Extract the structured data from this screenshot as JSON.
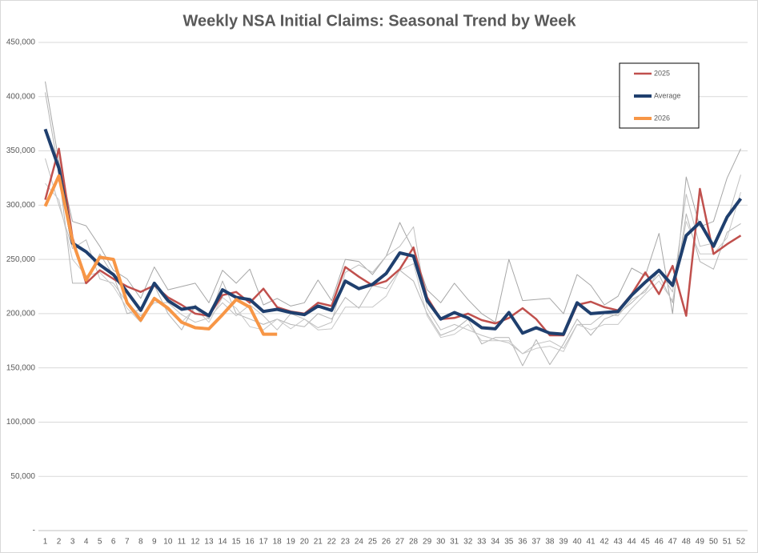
{
  "chart_data": {
    "type": "line",
    "title": "Weekly NSA Initial Claims: Seasonal Trend by Week",
    "categories": [
      1,
      2,
      3,
      4,
      5,
      6,
      7,
      8,
      9,
      10,
      11,
      12,
      13,
      14,
      15,
      16,
      17,
      18,
      19,
      20,
      21,
      22,
      23,
      24,
      25,
      26,
      27,
      28,
      29,
      30,
      31,
      32,
      33,
      34,
      35,
      36,
      37,
      38,
      39,
      40,
      41,
      42,
      43,
      44,
      45,
      46,
      47,
      48,
      49,
      50,
      51,
      52
    ],
    "ylim": [
      0,
      450000
    ],
    "yticks": [
      {
        "value": 0,
        "label": "-"
      },
      {
        "value": 50000,
        "label": "50,000"
      },
      {
        "value": 100000,
        "label": "100,000"
      },
      {
        "value": 150000,
        "label": "150,000"
      },
      {
        "value": 200000,
        "label": "200,000"
      },
      {
        "value": 250000,
        "label": "250,000"
      },
      {
        "value": 300000,
        "label": "300,000"
      },
      {
        "value": 350000,
        "label": "350,000"
      },
      {
        "value": 400000,
        "label": "400,000"
      },
      {
        "value": 450000,
        "label": "450,000"
      }
    ],
    "grid": true,
    "legend": "top-right",
    "series": [
      {
        "color": "#a6a6a6",
        "width": 1,
        "values": [
          414000,
          340000,
          285000,
          281000,
          262000,
          240000,
          232000,
          214000,
          243000,
          222000,
          225000,
          228000,
          210000,
          240000,
          228000,
          241000,
          208000,
          214000,
          207000,
          210000,
          231000,
          212000,
          250000,
          248000,
          236000,
          253000,
          284000,
          258000,
          222000,
          210000,
          228000,
          213000,
          200000,
          192000,
          250000,
          212000,
          213000,
          214000,
          200000,
          236000,
          226000,
          208000,
          216000,
          242000,
          235000,
          274000,
          200000,
          326000,
          280000,
          285000,
          325000,
          352000
        ]
      },
      {
        "color": "#b4b4b4",
        "width": 1,
        "values": [
          404000,
          330000,
          228000,
          228000,
          255000,
          235000,
          200000,
          204000,
          226000,
          200000,
          185000,
          208000,
          195000,
          230000,
          200000,
          195000,
          190000,
          195000,
          190000,
          188000,
          200000,
          195000,
          215000,
          205000,
          226000,
          223000,
          240000,
          230000,
          200000,
          180000,
          185000,
          195000,
          172000,
          178000,
          178000,
          152000,
          176000,
          153000,
          172000,
          195000,
          180000,
          195000,
          200000,
          210000,
          222000,
          236000,
          210000,
          292000,
          248000,
          241000,
          275000,
          283000
        ]
      },
      {
        "color": "#bfbfbf",
        "width": 1,
        "values": [
          343000,
          300000,
          260000,
          268000,
          232000,
          228000,
          210000,
          198000,
          210000,
          210000,
          199000,
          192000,
          196000,
          210000,
          198000,
          208000,
          198000,
          185000,
          200000,
          195000,
          187000,
          192000,
          238000,
          245000,
          238000,
          253000,
          262000,
          280000,
          205000,
          185000,
          190000,
          185000,
          180000,
          176000,
          173000,
          163000,
          172000,
          175000,
          168000,
          190000,
          190000,
          200000,
          198000,
          213000,
          220000,
          240000,
          220000,
          310000,
          262000,
          265000,
          286000,
          328000
        ]
      },
      {
        "color": "#c8c8c8",
        "width": 1,
        "values": [
          320000,
          305000,
          250000,
          235000,
          238000,
          225000,
          205000,
          192000,
          215000,
          203000,
          192000,
          205000,
          192000,
          215000,
          205000,
          188000,
          185000,
          195000,
          186000,
          195000,
          185000,
          186000,
          206000,
          206000,
          206000,
          216000,
          240000,
          246000,
          198000,
          178000,
          181000,
          190000,
          175000,
          175000,
          175000,
          163000,
          168000,
          170000,
          165000,
          190000,
          185000,
          190000,
          190000,
          205000,
          218000,
          230000,
          212000,
          285000,
          255000,
          255000,
          270000,
          312000
        ]
      },
      {
        "name": "2025",
        "color": "#c0504d",
        "width": 2.5,
        "values": [
          305000,
          352000,
          270000,
          228000,
          240000,
          232000,
          225000,
          220000,
          226000,
          215000,
          208000,
          200000,
          198000,
          217000,
          220000,
          210000,
          223000,
          206000,
          202000,
          200000,
          210000,
          207000,
          243000,
          234000,
          226000,
          230000,
          241000,
          261000,
          215000,
          195000,
          196000,
          200000,
          194000,
          191000,
          196000,
          205000,
          195000,
          180000,
          180000,
          208000,
          211000,
          206000,
          203000,
          218000,
          238000,
          218000,
          244000,
          198000,
          315000,
          255000,
          264000,
          272000
        ]
      },
      {
        "name": "Average",
        "color": "#1f3f6e",
        "width": 4,
        "values": [
          370000,
          334000,
          265000,
          257000,
          245000,
          236000,
          220000,
          203000,
          228000,
          212000,
          204000,
          206000,
          198000,
          222000,
          215000,
          213000,
          202000,
          204000,
          201000,
          199000,
          207000,
          203000,
          230000,
          223000,
          227000,
          237000,
          256000,
          253000,
          212000,
          195000,
          201000,
          196000,
          187000,
          186000,
          201000,
          182000,
          187000,
          182000,
          181000,
          210000,
          200000,
          201000,
          202000,
          217000,
          229000,
          240000,
          226000,
          272000,
          284000,
          262000,
          289000,
          306000
        ]
      },
      {
        "name": "2026",
        "color": "#f79646",
        "width": 4,
        "values": [
          299000,
          327000,
          267000,
          231000,
          252000,
          250000,
          210000,
          194000,
          214000,
          205000,
          192000,
          187000,
          186000,
          199000,
          213000,
          206000,
          181000,
          181000,
          null,
          null,
          null,
          null,
          null,
          null,
          null,
          null,
          null,
          null,
          null,
          null,
          null,
          null,
          null,
          null,
          null,
          null,
          null,
          null,
          null,
          null,
          null,
          null,
          null,
          null,
          null,
          null,
          null,
          null,
          null,
          null,
          null,
          null
        ]
      }
    ]
  }
}
